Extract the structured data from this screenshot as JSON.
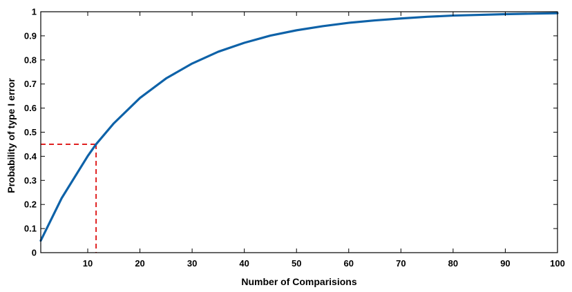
{
  "chart_data": {
    "type": "line",
    "title": "",
    "xlabel": "Number of Comparisions",
    "ylabel": "Probability of type I error",
    "xlim": [
      1,
      100
    ],
    "ylim": [
      0,
      1
    ],
    "xticks": [
      10,
      20,
      30,
      40,
      50,
      60,
      70,
      80,
      90,
      100
    ],
    "yticks": [
      0,
      0.1,
      0.2,
      0.3,
      0.4,
      0.5,
      0.6,
      0.7,
      0.8,
      0.9,
      1
    ],
    "ytick_labels": [
      "0",
      "0.1",
      "0.2",
      "0.3",
      "0.4",
      "0.5",
      "0.6",
      "0.7",
      "0.8",
      "0.9",
      "1"
    ],
    "grid": false,
    "series": [
      {
        "color": "#0e62a8",
        "x": [
          1,
          5,
          10,
          11.6,
          15,
          20,
          25,
          30,
          35,
          40,
          45,
          50,
          55,
          60,
          65,
          70,
          75,
          80,
          85,
          90,
          95,
          100
        ],
        "y": [
          0.05,
          0.226,
          0.401,
          0.45,
          0.537,
          0.642,
          0.723,
          0.785,
          0.834,
          0.871,
          0.901,
          0.923,
          0.94,
          0.954,
          0.964,
          0.972,
          0.979,
          0.984,
          0.987,
          0.99,
          0.992,
          0.994
        ]
      }
    ],
    "annotations": [
      {
        "type": "dashed-guide",
        "color": "#e02020",
        "x": 11.6,
        "y": 0.45
      }
    ]
  }
}
